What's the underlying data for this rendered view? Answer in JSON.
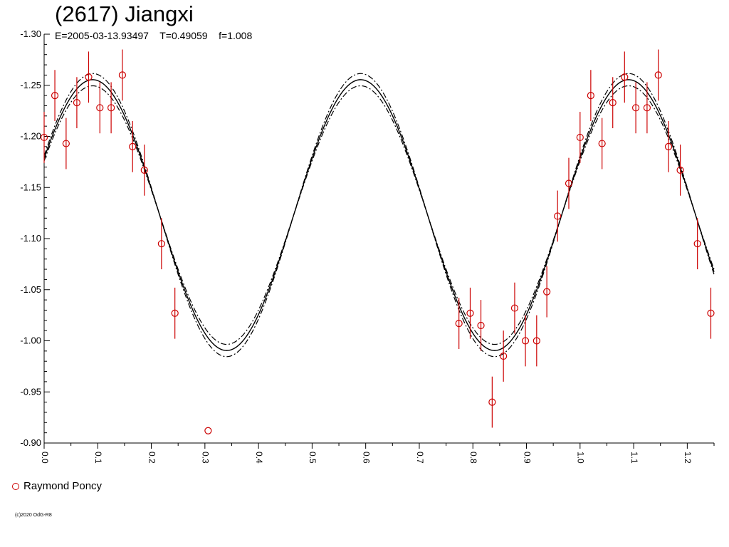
{
  "chart_data": {
    "type": "scatter",
    "title": "(2617) Jiangxi",
    "subtitle": "E=2005-03-13.93497    T=0.49059    f=1.008",
    "xlabel": "",
    "ylabel": "",
    "xlim": [
      0.0,
      1.25
    ],
    "ylim": [
      -1.3,
      -0.9
    ],
    "y_inverted": true,
    "x_ticks": [
      "0.0",
      "0.1",
      "0.2",
      "0.3",
      "0.4",
      "0.5",
      "0.6",
      "0.7",
      "0.8",
      "0.9",
      "1.0",
      "1.1",
      "1.2"
    ],
    "y_ticks": [
      "-1.30",
      "-1.25",
      "-1.20",
      "-1.15",
      "-1.10",
      "-1.05",
      "-1.00",
      "-0.95",
      "-0.90"
    ],
    "legend": {
      "position": "bottom-left",
      "entries": [
        {
          "name": "Raymond Poncy",
          "color": "#cc0000"
        }
      ]
    },
    "series": [
      {
        "name": "Raymond Poncy",
        "color": "#cc0000",
        "marker": "open-circle",
        "points": [
          {
            "x": 0.0,
            "y": -1.199,
            "err": 0.025
          },
          {
            "x": 0.02,
            "y": -1.24,
            "err": 0.025
          },
          {
            "x": 0.041,
            "y": -1.193,
            "err": 0.025
          },
          {
            "x": 0.061,
            "y": -1.233,
            "err": 0.025
          },
          {
            "x": 0.083,
            "y": -1.258,
            "err": 0.025
          },
          {
            "x": 0.104,
            "y": -1.228,
            "err": 0.025
          },
          {
            "x": 0.125,
            "y": -1.228,
            "err": 0.025
          },
          {
            "x": 0.146,
            "y": -1.26,
            "err": 0.025
          },
          {
            "x": 0.165,
            "y": -1.19,
            "err": 0.025
          },
          {
            "x": 0.187,
            "y": -1.167,
            "err": 0.025
          },
          {
            "x": 0.219,
            "y": -1.095,
            "err": 0.025
          },
          {
            "x": 0.244,
            "y": -1.027,
            "err": 0.025
          },
          {
            "x": 0.306,
            "y": -0.912,
            "err": 0
          },
          {
            "x": 0.774,
            "y": -1.017,
            "err": 0.025
          },
          {
            "x": 0.795,
            "y": -1.027,
            "err": 0.025
          },
          {
            "x": 0.815,
            "y": -1.015,
            "err": 0.025
          },
          {
            "x": 0.836,
            "y": -0.94,
            "err": 0.025
          },
          {
            "x": 0.857,
            "y": -0.985,
            "err": 0.025
          },
          {
            "x": 0.878,
            "y": -1.032,
            "err": 0.025
          },
          {
            "x": 0.898,
            "y": -1.0,
            "err": 0.025
          },
          {
            "x": 0.919,
            "y": -1.0,
            "err": 0.025
          },
          {
            "x": 0.938,
            "y": -1.048,
            "err": 0.025
          },
          {
            "x": 0.958,
            "y": -1.122,
            "err": 0.025
          },
          {
            "x": 0.979,
            "y": -1.154,
            "err": 0.025
          },
          {
            "x": 1.0,
            "y": -1.199,
            "err": 0.025
          },
          {
            "x": 1.02,
            "y": -1.24,
            "err": 0.025
          },
          {
            "x": 1.041,
            "y": -1.193,
            "err": 0.025
          },
          {
            "x": 1.061,
            "y": -1.233,
            "err": 0.025
          },
          {
            "x": 1.083,
            "y": -1.258,
            "err": 0.025
          },
          {
            "x": 1.104,
            "y": -1.228,
            "err": 0.025
          },
          {
            "x": 1.125,
            "y": -1.228,
            "err": 0.025
          },
          {
            "x": 1.146,
            "y": -1.26,
            "err": 0.025
          },
          {
            "x": 1.165,
            "y": -1.19,
            "err": 0.025
          },
          {
            "x": 1.187,
            "y": -1.167,
            "err": 0.025
          },
          {
            "x": 1.219,
            "y": -1.095,
            "err": 0.025
          },
          {
            "x": 1.244,
            "y": -1.027,
            "err": 0.025
          }
        ]
      }
    ],
    "fit_curve": {
      "style": "solid with dash-dot envelopes",
      "color": "#000000",
      "mean": -1.123,
      "amplitude": 0.1325,
      "peak_phase": 0.0906,
      "harmonic_period": 0.5,
      "envelope_offset": 0.006
    }
  },
  "footer": {
    "copyright": "(c)2020 OdG-R8"
  }
}
